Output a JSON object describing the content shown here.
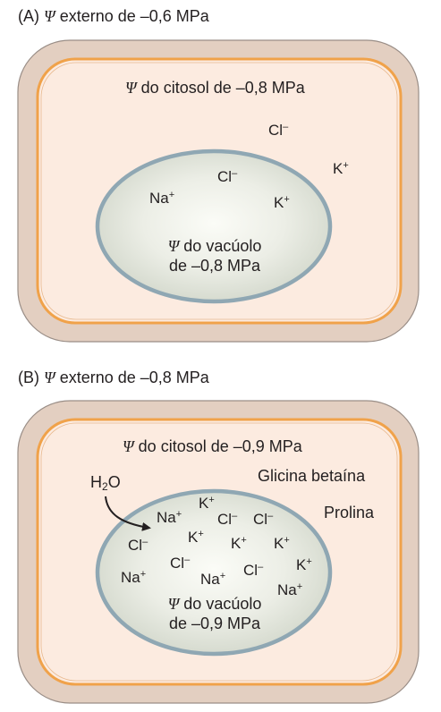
{
  "colors": {
    "cell_wall": "#e3cfc1",
    "cell_wall_stroke": "#9a8e87",
    "membrane_orange": "#f0a24a",
    "cytosol": "#fcebe0",
    "vacuole_center": "#fbfcf7",
    "vacuole_edge": "#d3d8cc",
    "vacuole_stroke": "#8fa7b3",
    "text": "#231f20"
  },
  "panel_a": {
    "title_prefix": "(A)",
    "psi_symbol": "Ψ",
    "title_rest": "externo de –0,6 MPa",
    "cytosol_label": "do citosol de –0,8 MPa",
    "vacuole_label_line1": "do vacúolo",
    "vacuole_label_line2": "de –0,8 MPa",
    "ions": {
      "cytosol_cl_base": "Cl",
      "cytosol_cl_charge": "–",
      "cytosol_k_base": "K",
      "cytosol_k_charge": "+",
      "vac_cl_base": "Cl",
      "vac_cl_charge": "–",
      "vac_na_base": "Na",
      "vac_na_charge": "+",
      "vac_k_base": "K",
      "vac_k_charge": "+"
    }
  },
  "panel_b": {
    "title_prefix": "(B)",
    "psi_symbol": "Ψ",
    "title_rest": "externo de –0,8 MPa",
    "cytosol_label": "do citosol de –0,9 MPa",
    "solute_1": "Glicina betaína",
    "solute_2": "Prolina",
    "water_H": "H",
    "water_sub": "2",
    "water_O": "O",
    "vacuole_label_line1": "do vacúolo",
    "vacuole_label_line2": "de –0,9 MPa",
    "ions": {
      "na": "Na",
      "k": "K",
      "cl": "Cl",
      "plus": "+",
      "minus": "–"
    }
  }
}
